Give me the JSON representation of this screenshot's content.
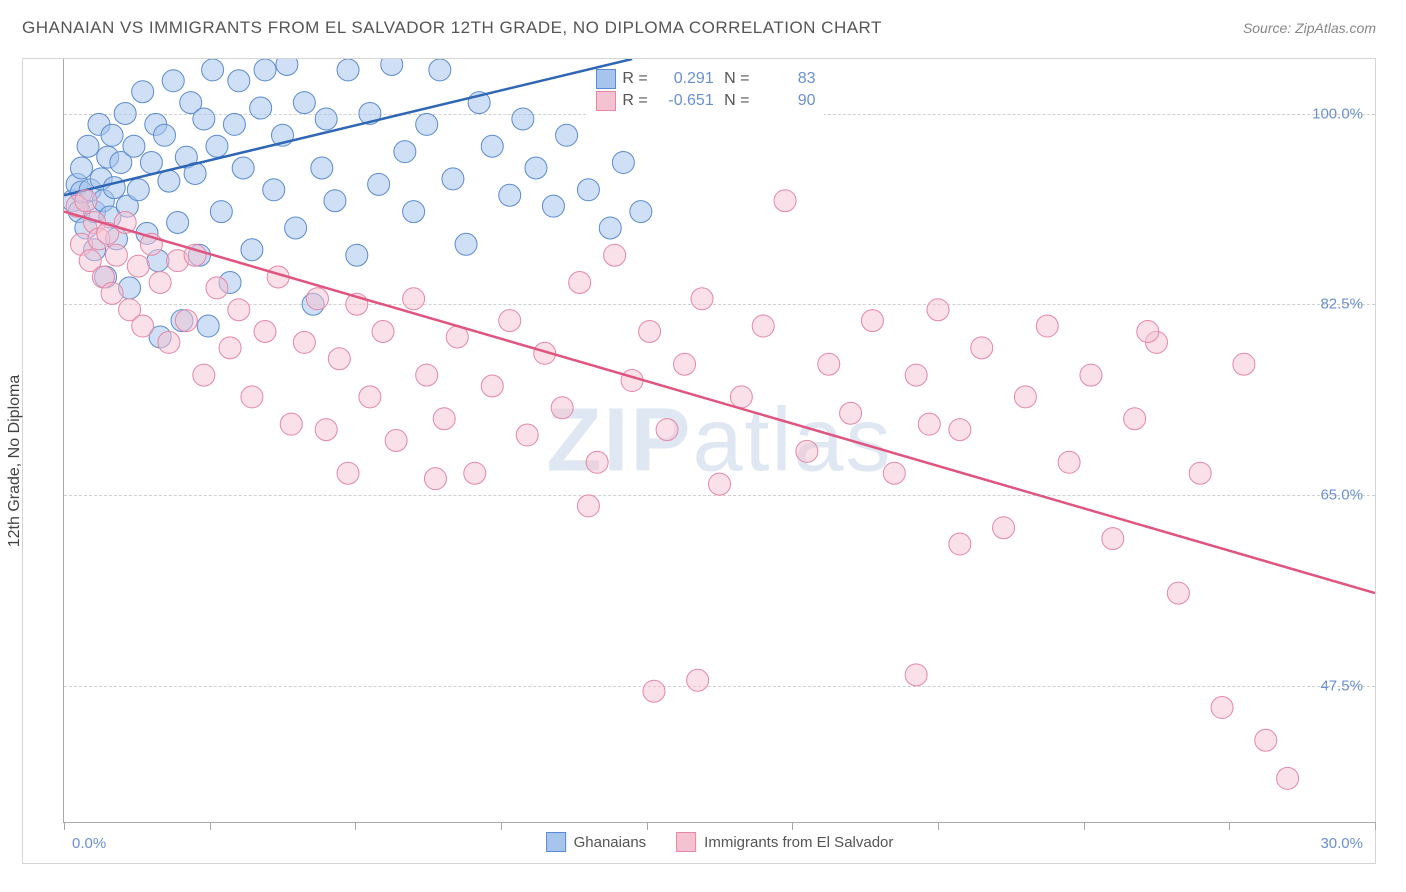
{
  "title": "GHANAIAN VS IMMIGRANTS FROM EL SALVADOR 12TH GRADE, NO DIPLOMA CORRELATION CHART",
  "source": "Source: ZipAtlas.com",
  "watermark_zip": "ZIP",
  "watermark_atlas": "atlas",
  "y_axis_label": "12th Grade, No Diploma",
  "chart": {
    "type": "scatter",
    "xlim": [
      0,
      30
    ],
    "ylim": [
      35,
      105
    ],
    "x_ticks": [
      0,
      3.33,
      6.66,
      10,
      13.33,
      16.66,
      20,
      23.33,
      26.66,
      30
    ],
    "x_labels": {
      "min": "0.0%",
      "max": "30.0%"
    },
    "y_gridlines": [
      47.5,
      65.0,
      82.5,
      100.0
    ],
    "y_labels": [
      "47.5%",
      "65.0%",
      "82.5%",
      "100.0%"
    ],
    "background_color": "#ffffff",
    "grid_color": "#d0d0d0",
    "axis_color": "#aaaaaa",
    "text_color": "#555555",
    "value_color": "#6b8fd4",
    "series": [
      {
        "name": "Ghanaians",
        "color_fill": "#a7c5ec",
        "color_stroke": "#5b8bd0",
        "line_color": "#2f66b5",
        "marker_radius": 11,
        "marker_opacity": 0.55,
        "R": "0.291",
        "N": "83",
        "trend": {
          "x1": 0,
          "y1": 92.5,
          "x2": 13,
          "y2": 105
        },
        "points": [
          [
            0.2,
            92
          ],
          [
            0.3,
            93.5
          ],
          [
            0.35,
            91
          ],
          [
            0.4,
            95
          ],
          [
            0.4,
            92.8
          ],
          [
            0.5,
            89.5
          ],
          [
            0.55,
            97
          ],
          [
            0.6,
            93
          ],
          [
            0.7,
            91
          ],
          [
            0.7,
            87.5
          ],
          [
            0.8,
            99
          ],
          [
            0.85,
            94
          ],
          [
            0.9,
            92
          ],
          [
            0.95,
            85
          ],
          [
            1.0,
            96
          ],
          [
            1.05,
            90.5
          ],
          [
            1.1,
            98
          ],
          [
            1.15,
            93.2
          ],
          [
            1.2,
            88.5
          ],
          [
            1.3,
            95.5
          ],
          [
            1.4,
            100
          ],
          [
            1.45,
            91.5
          ],
          [
            1.5,
            84
          ],
          [
            1.6,
            97
          ],
          [
            1.7,
            93
          ],
          [
            1.8,
            102
          ],
          [
            1.9,
            89
          ],
          [
            2.0,
            95.5
          ],
          [
            2.1,
            99
          ],
          [
            2.15,
            86.5
          ],
          [
            2.3,
            98
          ],
          [
            2.4,
            93.8
          ],
          [
            2.5,
            103
          ],
          [
            2.6,
            90
          ],
          [
            2.7,
            81
          ],
          [
            2.8,
            96
          ],
          [
            2.9,
            101
          ],
          [
            3.0,
            94.5
          ],
          [
            3.1,
            87
          ],
          [
            3.2,
            99.5
          ],
          [
            3.4,
            104
          ],
          [
            3.5,
            97
          ],
          [
            3.6,
            91
          ],
          [
            3.8,
            84.5
          ],
          [
            3.9,
            99
          ],
          [
            4.0,
            103
          ],
          [
            4.1,
            95
          ],
          [
            4.3,
            87.5
          ],
          [
            4.5,
            100.5
          ],
          [
            4.6,
            104
          ],
          [
            4.8,
            93
          ],
          [
            5.0,
            98
          ],
          [
            5.1,
            104.5
          ],
          [
            5.3,
            89.5
          ],
          [
            5.5,
            101
          ],
          [
            5.7,
            82.5
          ],
          [
            5.9,
            95
          ],
          [
            6.0,
            99.5
          ],
          [
            6.2,
            92
          ],
          [
            6.5,
            104
          ],
          [
            6.7,
            87
          ],
          [
            7.0,
            100
          ],
          [
            7.2,
            93.5
          ],
          [
            7.5,
            104.5
          ],
          [
            7.8,
            96.5
          ],
          [
            8.0,
            91
          ],
          [
            8.3,
            99
          ],
          [
            8.6,
            104
          ],
          [
            8.9,
            94
          ],
          [
            9.2,
            88
          ],
          [
            9.5,
            101
          ],
          [
            9.8,
            97
          ],
          [
            10.2,
            92.5
          ],
          [
            10.5,
            99.5
          ],
          [
            10.8,
            95
          ],
          [
            11.2,
            91.5
          ],
          [
            11.5,
            98
          ],
          [
            12.0,
            93
          ],
          [
            12.5,
            89.5
          ],
          [
            12.8,
            95.5
          ],
          [
            13.2,
            91
          ],
          [
            2.2,
            79.5
          ],
          [
            3.3,
            80.5
          ]
        ]
      },
      {
        "name": "Immigrants from El Salvador",
        "color_fill": "#f5c2d1",
        "color_stroke": "#e687a5",
        "line_color": "#e0557f",
        "marker_radius": 11,
        "marker_opacity": 0.5,
        "R": "-0.651",
        "N": "90",
        "trend": {
          "x1": 0,
          "y1": 91,
          "x2": 30,
          "y2": 56
        },
        "points": [
          [
            0.3,
            91.5
          ],
          [
            0.4,
            88
          ],
          [
            0.5,
            92
          ],
          [
            0.6,
            86.5
          ],
          [
            0.7,
            90
          ],
          [
            0.8,
            88.5
          ],
          [
            0.9,
            85
          ],
          [
            1.0,
            89
          ],
          [
            1.1,
            83.5
          ],
          [
            1.2,
            87
          ],
          [
            1.4,
            90
          ],
          [
            1.5,
            82
          ],
          [
            1.7,
            86
          ],
          [
            1.8,
            80.5
          ],
          [
            2.0,
            88
          ],
          [
            2.2,
            84.5
          ],
          [
            2.4,
            79
          ],
          [
            2.6,
            86.5
          ],
          [
            2.8,
            81
          ],
          [
            3.0,
            87
          ],
          [
            3.2,
            76
          ],
          [
            3.5,
            84
          ],
          [
            3.8,
            78.5
          ],
          [
            4.0,
            82
          ],
          [
            4.3,
            74
          ],
          [
            4.6,
            80
          ],
          [
            4.9,
            85
          ],
          [
            5.2,
            71.5
          ],
          [
            5.5,
            79
          ],
          [
            5.8,
            83
          ],
          [
            6.0,
            71
          ],
          [
            6.3,
            77.5
          ],
          [
            6.7,
            82.5
          ],
          [
            7.0,
            74
          ],
          [
            7.3,
            80
          ],
          [
            7.6,
            70
          ],
          [
            8.0,
            83
          ],
          [
            8.3,
            76
          ],
          [
            8.7,
            72
          ],
          [
            9.0,
            79.5
          ],
          [
            9.4,
            67
          ],
          [
            9.8,
            75
          ],
          [
            10.2,
            81
          ],
          [
            10.6,
            70.5
          ],
          [
            11.0,
            78
          ],
          [
            11.4,
            73
          ],
          [
            11.8,
            84.5
          ],
          [
            12.2,
            68
          ],
          [
            12.6,
            87
          ],
          [
            13.0,
            75.5
          ],
          [
            13.4,
            80
          ],
          [
            13.8,
            71
          ],
          [
            14.2,
            77
          ],
          [
            14.6,
            83
          ],
          [
            15.0,
            66
          ],
          [
            15.5,
            74
          ],
          [
            16.0,
            80.5
          ],
          [
            16.5,
            92
          ],
          [
            17.0,
            69
          ],
          [
            17.5,
            77
          ],
          [
            18.0,
            72.5
          ],
          [
            18.5,
            81
          ],
          [
            19.0,
            67
          ],
          [
            19.5,
            76
          ],
          [
            20.0,
            82
          ],
          [
            20.5,
            71
          ],
          [
            21.0,
            78.5
          ],
          [
            21.5,
            62
          ],
          [
            22.0,
            74
          ],
          [
            22.5,
            80.5
          ],
          [
            23.0,
            68
          ],
          [
            23.5,
            76
          ],
          [
            24.0,
            61
          ],
          [
            24.5,
            72
          ],
          [
            25.0,
            79
          ],
          [
            25.5,
            56
          ],
          [
            26.0,
            67
          ],
          [
            26.5,
            45.5
          ],
          [
            27.0,
            77
          ],
          [
            27.5,
            42.5
          ],
          [
            28.0,
            39
          ],
          [
            24.8,
            80
          ],
          [
            13.5,
            47
          ],
          [
            12.0,
            64
          ],
          [
            14.5,
            48
          ],
          [
            19.5,
            48.5
          ],
          [
            19.8,
            71.5
          ],
          [
            20.5,
            60.5
          ],
          [
            8.5,
            66.5
          ],
          [
            6.5,
            67
          ]
        ]
      }
    ],
    "legend_bottom": [
      {
        "label": "Ghanaians",
        "fill": "#a7c5ec",
        "stroke": "#5b8bd0"
      },
      {
        "label": "Immigrants from El Salvador",
        "fill": "#f5c2d1",
        "stroke": "#e687a5"
      }
    ]
  }
}
